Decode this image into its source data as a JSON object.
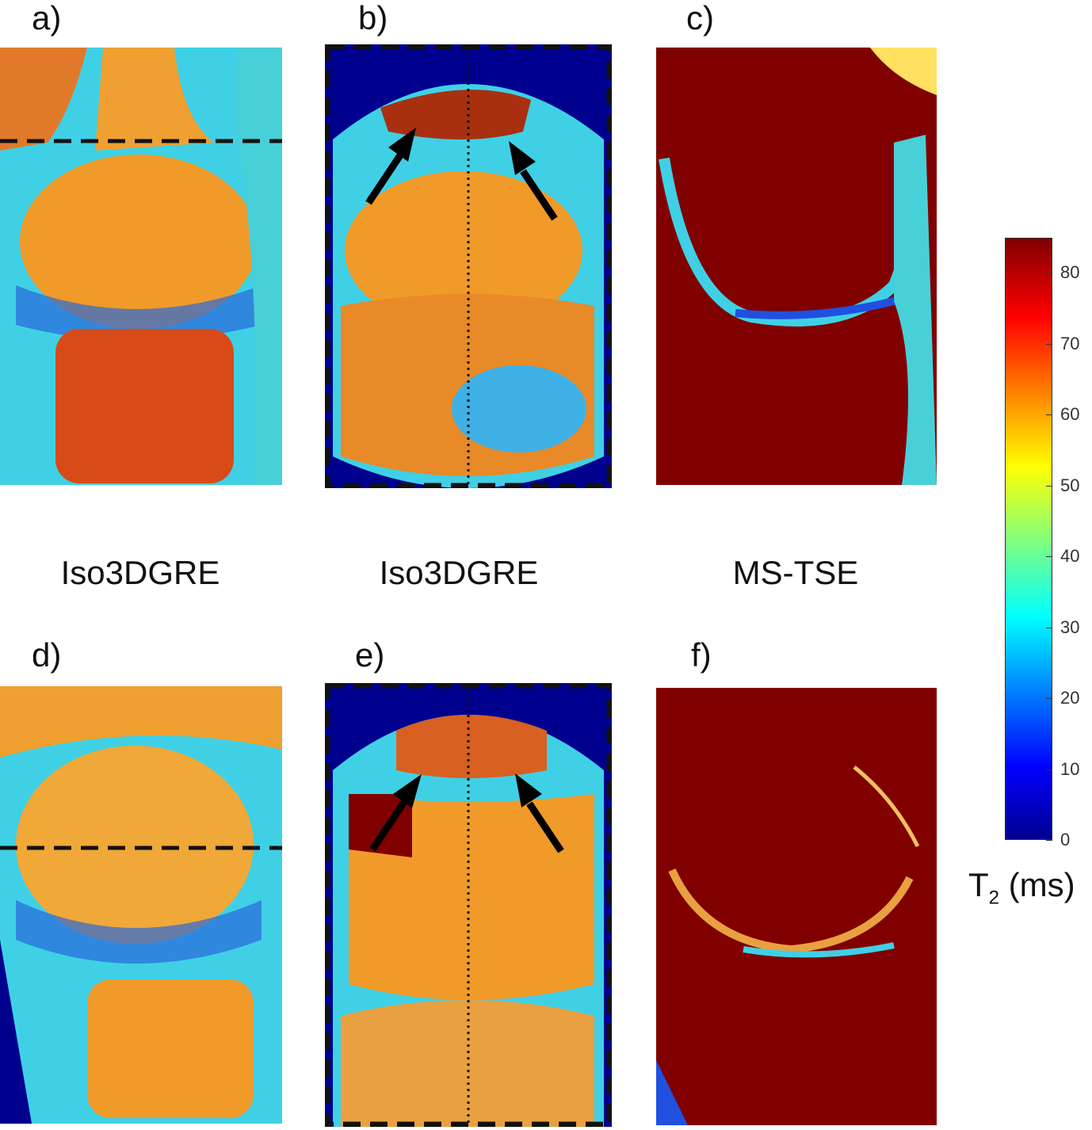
{
  "figure": {
    "panel_labels": {
      "a": "a)",
      "b": "b)",
      "c": "c)",
      "d": "d)",
      "e": "e)",
      "f": "f)"
    },
    "method_labels": {
      "col1": "Iso3DGRE",
      "col2": "Iso3DGRE",
      "col3": "MS-TSE"
    },
    "colorbar": {
      "ticks": [
        "0",
        "10",
        "20",
        "30",
        "40",
        "50",
        "60",
        "70",
        "80"
      ],
      "title_main": "T",
      "title_sub": "2",
      "title_unit": " (ms)"
    },
    "colors": {
      "dark_red": "#800000",
      "orange": "#f08a2a",
      "cyan": "#3fd0e6",
      "blue": "#2050e0",
      "navy": "#00008f"
    }
  }
}
